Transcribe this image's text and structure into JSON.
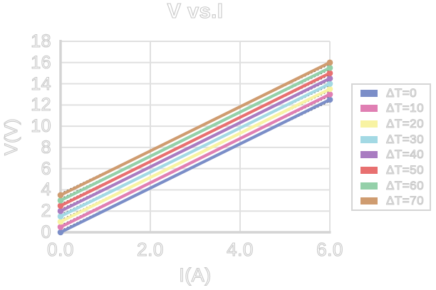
{
  "chart_data": {
    "type": "line",
    "title": "V vs.I",
    "xlabel": "I(A)",
    "ylabel": "V(V)",
    "xlim": [
      0,
      6
    ],
    "ylim": [
      0,
      18
    ],
    "x_tick_labels": [
      "0.0",
      "2.0",
      "4.0",
      "6.0"
    ],
    "x_tick_values": [
      0,
      2,
      4,
      6
    ],
    "y_tick_labels": [
      "0",
      "2",
      "4",
      "6",
      "8",
      "10",
      "12",
      "14",
      "16",
      "18"
    ],
    "y_tick_values": [
      0,
      2,
      4,
      6,
      8,
      10,
      12,
      14,
      16,
      18
    ],
    "grid": true,
    "legend_position": "right",
    "grid_color": "#e0e0e0",
    "axis_color": "#d4d4d4",
    "text_color": "#c8c8c8",
    "trendline_color": "#3a3a3a",
    "series": [
      {
        "name": "ΔT=0",
        "color": "#7b8ec8",
        "x": [
          0,
          6
        ],
        "y": [
          0.0,
          12.5
        ]
      },
      {
        "name": "ΔT=10",
        "color": "#e07fb3",
        "x": [
          0,
          6
        ],
        "y": [
          0.5,
          13.0
        ]
      },
      {
        "name": "ΔT=20",
        "color": "#f8f3a3",
        "x": [
          0,
          6
        ],
        "y": [
          1.0,
          13.5
        ]
      },
      {
        "name": "ΔT=30",
        "color": "#a3d9e4",
        "x": [
          0,
          6
        ],
        "y": [
          1.5,
          14.0
        ]
      },
      {
        "name": "ΔT=40",
        "color": "#a97cc1",
        "x": [
          0,
          6
        ],
        "y": [
          2.0,
          14.5
        ]
      },
      {
        "name": "ΔT=50",
        "color": "#e87070",
        "x": [
          0,
          6
        ],
        "y": [
          2.5,
          15.0
        ]
      },
      {
        "name": "ΔT=60",
        "color": "#94d0a9",
        "x": [
          0,
          6
        ],
        "y": [
          3.0,
          15.5
        ]
      },
      {
        "name": "ΔT=70",
        "color": "#cf9c70",
        "x": [
          0,
          6
        ],
        "y": [
          3.5,
          16.0
        ]
      }
    ]
  }
}
